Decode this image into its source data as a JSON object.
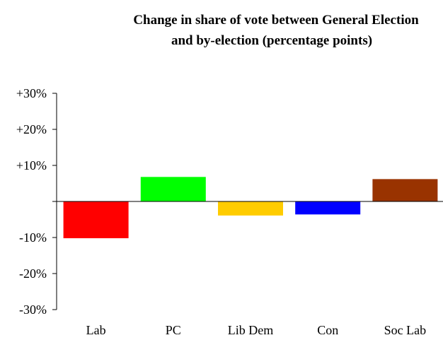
{
  "chart_data": {
    "type": "bar",
    "title_lines": [
      "Change in share of vote between General Election",
      "and by-election (percentage points)"
    ],
    "categories": [
      "Lab",
      "PC",
      "Lib Dem",
      "Con",
      "Soc Lab"
    ],
    "values": [
      -10.2,
      6.8,
      -3.9,
      -3.6,
      6.2
    ],
    "colors": [
      "#ff0000",
      "#00ff00",
      "#ffcc00",
      "#0000ff",
      "#993300"
    ],
    "ylim": [
      -30,
      30
    ],
    "yticks": [
      30,
      20,
      10,
      0,
      -10,
      -20,
      -30
    ],
    "ytick_labels": [
      "+30%",
      "+20%",
      "+10%",
      "",
      "-10%",
      "-20%",
      "-30%"
    ],
    "grid": false,
    "legend": "none",
    "xlabel": "",
    "ylabel": ""
  }
}
